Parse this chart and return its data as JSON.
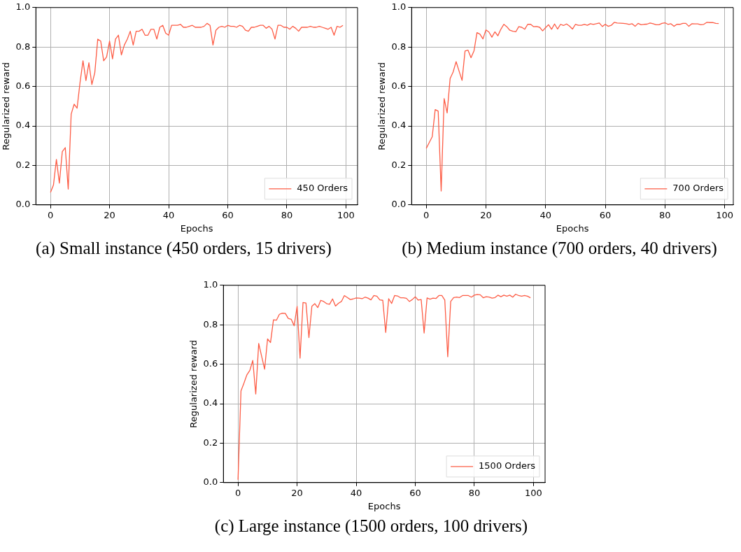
{
  "chart_data": [
    {
      "type": "line",
      "xlabel": "Epochs",
      "ylabel": "Regularized reward",
      "annotations": [
        "(a) Small instance (450 orders, 15 drivers)"
      ],
      "legend": "bottom right",
      "grid": true,
      "line_style": "solid",
      "marker": "none",
      "xlim": [
        -4.95,
        103.95
      ],
      "ylim": [
        0,
        1
      ],
      "xticks": [
        0,
        20,
        40,
        60,
        80,
        100
      ],
      "yticks": [
        {
          "value": 0,
          "label": "0.0"
        },
        {
          "value": 0.2,
          "label": "0.2"
        },
        {
          "value": 0.4,
          "label": "0.4"
        },
        {
          "value": 0.6,
          "label": "0.6"
        },
        {
          "value": 0.8,
          "label": "0.8"
        },
        {
          "value": 1,
          "label": "1.0"
        }
      ],
      "series": [
        {
          "name": "450 Orders",
          "color": "#fd5c45",
          "x": [
            0,
            1,
            2,
            3,
            4,
            5,
            6,
            7,
            8,
            9,
            10,
            11,
            12,
            13,
            14,
            15,
            16,
            17,
            18,
            19,
            20,
            21,
            22,
            23,
            24,
            25,
            26,
            27,
            28,
            29,
            30,
            31,
            32,
            33,
            34,
            35,
            36,
            37,
            38,
            39,
            40,
            41,
            42,
            43,
            44,
            45,
            46,
            47,
            48,
            49,
            50,
            51,
            52,
            53,
            54,
            55,
            56,
            57,
            58,
            59,
            60,
            61,
            62,
            63,
            64,
            65,
            66,
            67,
            68,
            69,
            70,
            71,
            72,
            73,
            74,
            75,
            76,
            77,
            78,
            79,
            80,
            81,
            82,
            83,
            84,
            85,
            86,
            87,
            88,
            89,
            90,
            91,
            92,
            93,
            94,
            95,
            96,
            97,
            98,
            99
          ],
          "values": [
            0.063,
            0.1,
            0.23,
            0.11,
            0.27,
            0.29,
            0.08,
            0.46,
            0.51,
            0.49,
            0.62,
            0.73,
            0.63,
            0.72,
            0.61,
            0.67,
            0.84,
            0.83,
            0.73,
            0.75,
            0.83,
            0.74,
            0.84,
            0.86,
            0.76,
            0.81,
            0.84,
            0.88,
            0.81,
            0.88,
            0.88,
            0.89,
            0.86,
            0.86,
            0.89,
            0.89,
            0.84,
            0.9,
            0.91,
            0.87,
            0.86,
            0.91,
            0.91,
            0.91,
            0.915,
            0.9,
            0.9,
            0.905,
            0.91,
            0.9,
            0.9,
            0.9,
            0.905,
            0.92,
            0.91,
            0.81,
            0.885,
            0.9,
            0.905,
            0.9,
            0.91,
            0.905,
            0.905,
            0.9,
            0.91,
            0.905,
            0.885,
            0.88,
            0.9,
            0.9,
            0.905,
            0.91,
            0.91,
            0.895,
            0.905,
            0.89,
            0.84,
            0.91,
            0.91,
            0.9,
            0.9,
            0.89,
            0.905,
            0.895,
            0.88,
            0.9,
            0.9,
            0.9,
            0.905,
            0.9,
            0.9,
            0.905,
            0.9,
            0.895,
            0.89,
            0.9,
            0.86,
            0.905,
            0.9,
            0.91
          ]
        }
      ]
    },
    {
      "type": "line",
      "xlabel": "Epochs",
      "ylabel": "Regularized reward",
      "annotations": [
        "(b) Medium instance (700 orders, 40 drivers)"
      ],
      "legend": "bottom right",
      "grid": true,
      "line_style": "solid",
      "marker": "none",
      "xlim": [
        -4.9,
        102.9
      ],
      "ylim": [
        0,
        1
      ],
      "xticks": [
        0,
        20,
        40,
        60,
        80,
        100
      ],
      "yticks": [
        {
          "value": 0,
          "label": "0.0"
        },
        {
          "value": 0.2,
          "label": "0.2"
        },
        {
          "value": 0.4,
          "label": "0.4"
        },
        {
          "value": 0.6,
          "label": "0.6"
        },
        {
          "value": 0.8,
          "label": "0.8"
        },
        {
          "value": 1,
          "label": "1.0"
        }
      ],
      "series": [
        {
          "name": "700 Orders",
          "color": "#fd5c45",
          "x": [
            0,
            1,
            2,
            3,
            4,
            5,
            6,
            7,
            8,
            9,
            10,
            11,
            12,
            13,
            14,
            15,
            16,
            17,
            18,
            19,
            20,
            21,
            22,
            23,
            24,
            25,
            26,
            27,
            28,
            29,
            30,
            31,
            32,
            33,
            34,
            35,
            36,
            37,
            38,
            39,
            40,
            41,
            42,
            43,
            44,
            45,
            46,
            47,
            48,
            49,
            50,
            51,
            52,
            53,
            54,
            55,
            56,
            57,
            58,
            59,
            60,
            61,
            62,
            63,
            64,
            65,
            66,
            67,
            68,
            69,
            70,
            71,
            72,
            73,
            74,
            75,
            76,
            77,
            78,
            79,
            80,
            81,
            82,
            83,
            84,
            85,
            86,
            87,
            88,
            89,
            90,
            91,
            92,
            93,
            94,
            95,
            96,
            97,
            98
          ],
          "values": [
            0.286,
            0.316,
            0.345,
            0.483,
            0.475,
            0.07,
            0.539,
            0.466,
            0.64,
            0.673,
            0.726,
            0.678,
            0.631,
            0.78,
            0.784,
            0.746,
            0.78,
            0.873,
            0.865,
            0.841,
            0.887,
            0.876,
            0.85,
            0.877,
            0.857,
            0.89,
            0.915,
            0.903,
            0.885,
            0.88,
            0.877,
            0.903,
            0.9,
            0.89,
            0.915,
            0.915,
            0.903,
            0.904,
            0.9,
            0.882,
            0.898,
            0.913,
            0.89,
            0.917,
            0.891,
            0.915,
            0.909,
            0.917,
            0.906,
            0.891,
            0.915,
            0.91,
            0.91,
            0.915,
            0.91,
            0.918,
            0.915,
            0.918,
            0.922,
            0.904,
            0.915,
            0.905,
            0.91,
            0.925,
            0.922,
            0.921,
            0.92,
            0.918,
            0.915,
            0.918,
            0.905,
            0.92,
            0.913,
            0.915,
            0.916,
            0.922,
            0.918,
            0.913,
            0.913,
            0.92,
            0.923,
            0.915,
            0.918,
            0.905,
            0.915,
            0.915,
            0.92,
            0.92,
            0.905,
            0.918,
            0.917,
            0.917,
            0.913,
            0.915,
            0.925,
            0.924,
            0.924,
            0.92,
            0.919
          ]
        }
      ]
    },
    {
      "type": "line",
      "xlabel": "Epochs",
      "ylabel": "Regularized reward",
      "annotations": [
        "(c) Large instance (1500 orders, 100 drivers)"
      ],
      "legend": "bottom right",
      "grid": true,
      "line_style": "solid",
      "marker": "none",
      "xlim": [
        -4.95,
        103.95
      ],
      "ylim": [
        0,
        1
      ],
      "xticks": [
        0,
        20,
        40,
        60,
        80,
        100
      ],
      "yticks": [
        {
          "value": 0,
          "label": "0.0"
        },
        {
          "value": 0.2,
          "label": "0.2"
        },
        {
          "value": 0.4,
          "label": "0.4"
        },
        {
          "value": 0.6,
          "label": "0.6"
        },
        {
          "value": 0.8,
          "label": "0.8"
        },
        {
          "value": 1,
          "label": "1.0"
        }
      ],
      "series": [
        {
          "name": "1500 Orders",
          "color": "#fd5c45",
          "x": [
            0,
            1,
            2,
            3,
            4,
            5,
            6,
            7,
            8,
            9,
            10,
            11,
            12,
            13,
            14,
            15,
            16,
            17,
            18,
            19,
            20,
            21,
            22,
            23,
            24,
            25,
            26,
            27,
            28,
            29,
            30,
            31,
            32,
            33,
            34,
            35,
            36,
            37,
            38,
            39,
            40,
            41,
            42,
            43,
            44,
            45,
            46,
            47,
            48,
            49,
            50,
            51,
            52,
            53,
            54,
            55,
            56,
            57,
            58,
            59,
            60,
            61,
            62,
            63,
            64,
            65,
            66,
            67,
            68,
            69,
            70,
            71,
            72,
            73,
            74,
            75,
            76,
            77,
            78,
            79,
            80,
            81,
            82,
            83,
            84,
            85,
            86,
            87,
            88,
            89,
            90,
            91,
            92,
            93,
            94,
            95,
            96,
            97,
            98,
            99
          ],
          "values": [
            0.014,
            0.465,
            0.504,
            0.546,
            0.569,
            0.619,
            0.449,
            0.705,
            0.64,
            0.575,
            0.728,
            0.71,
            0.825,
            0.823,
            0.853,
            0.859,
            0.858,
            0.832,
            0.828,
            0.795,
            0.893,
            0.631,
            0.913,
            0.91,
            0.735,
            0.894,
            0.907,
            0.887,
            0.924,
            0.918,
            0.907,
            0.904,
            0.931,
            0.895,
            0.909,
            0.918,
            0.948,
            0.938,
            0.928,
            0.931,
            0.936,
            0.935,
            0.932,
            0.94,
            0.935,
            0.926,
            0.948,
            0.945,
            0.926,
            0.924,
            0.761,
            0.932,
            0.908,
            0.948,
            0.946,
            0.937,
            0.937,
            0.934,
            0.918,
            0.928,
            0.942,
            0.925,
            0.928,
            0.758,
            0.936,
            0.93,
            0.935,
            0.933,
            0.948,
            0.948,
            0.925,
            0.638,
            0.918,
            0.938,
            0.94,
            0.938,
            0.948,
            0.948,
            0.948,
            0.94,
            0.95,
            0.954,
            0.952,
            0.937,
            0.942,
            0.94,
            0.935,
            0.938,
            0.95,
            0.942,
            0.95,
            0.945,
            0.95,
            0.94,
            0.955,
            0.948,
            0.945,
            0.948,
            0.945,
            0.937
          ]
        }
      ]
    }
  ]
}
